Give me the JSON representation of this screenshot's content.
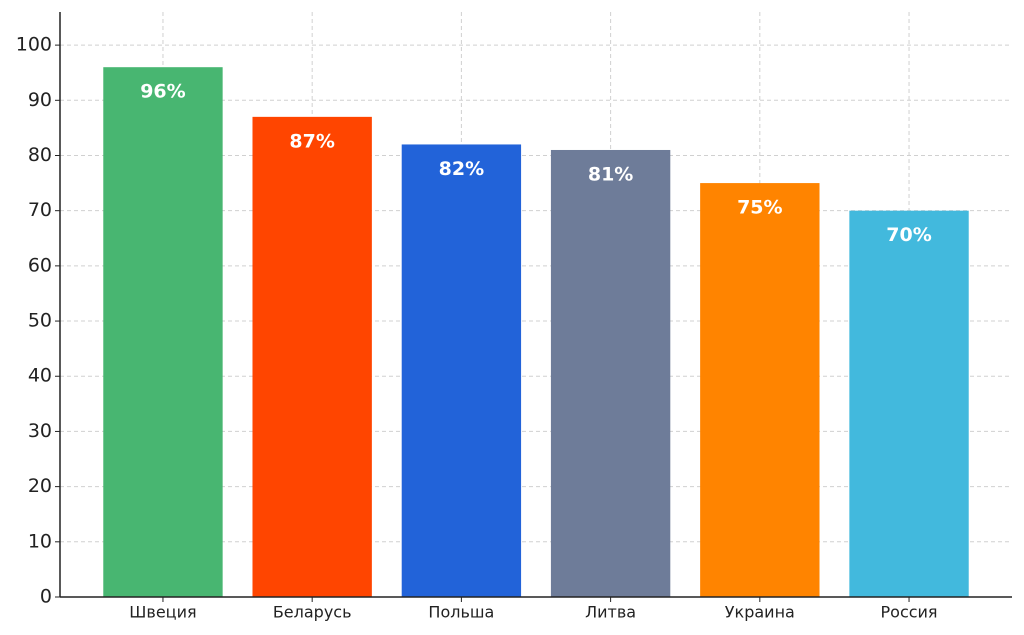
{
  "chart_data": {
    "type": "bar",
    "categories": [
      "Швеция",
      "Беларусь",
      "Польша",
      "Литва",
      "Украина",
      "Россия"
    ],
    "values": [
      96,
      87,
      82,
      81,
      75,
      70
    ],
    "value_labels": [
      "96%",
      "87%",
      "82%",
      "81%",
      "75%",
      "70%"
    ],
    "colors": [
      "#48b671",
      "#ff4500",
      "#2263d9",
      "#6e7c99",
      "#ff8400",
      "#42b9dd"
    ],
    "ylim": [
      0,
      106
    ],
    "yticks": [
      0,
      10,
      20,
      30,
      40,
      50,
      60,
      70,
      80,
      90,
      100
    ],
    "grid": true
  }
}
